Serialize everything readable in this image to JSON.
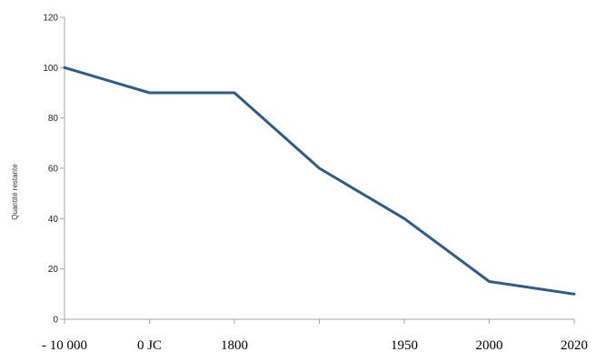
{
  "chart_data": {
    "type": "line",
    "title": "",
    "xlabel": "",
    "ylabel": "Quantité restante",
    "ylim": [
      0,
      120
    ],
    "yticks": [
      0,
      20,
      40,
      60,
      80,
      100,
      120
    ],
    "categories": [
      "- 10 000",
      "0 JC",
      "1800",
      "",
      "1950",
      "2000",
      "2020"
    ],
    "values": [
      100,
      90,
      90,
      60,
      40,
      15,
      10
    ],
    "grid": false,
    "legend": "none",
    "line_color": "#2e5c8a",
    "axis_color": "#a6a6a6"
  }
}
